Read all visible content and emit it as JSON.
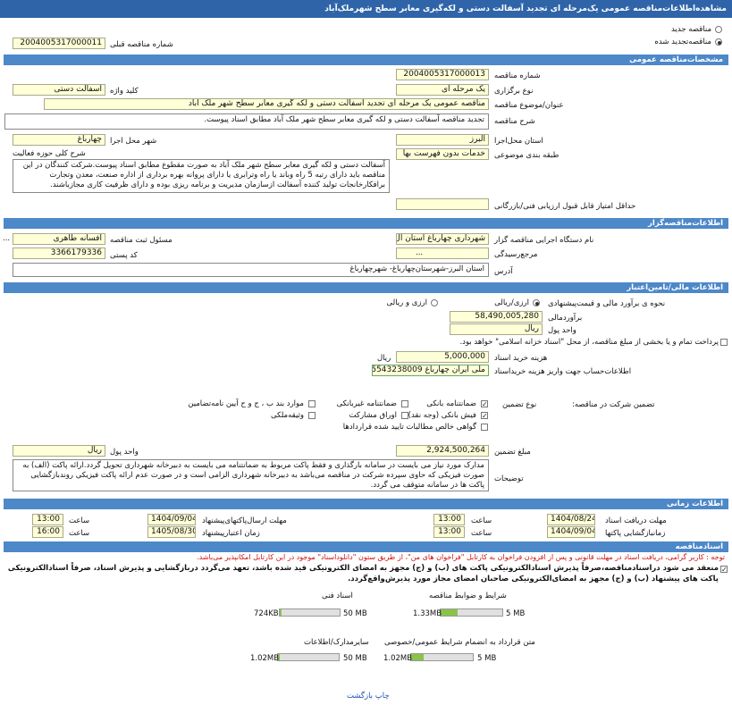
{
  "header": {
    "title": "مشاهده‌اطلاعات‌مناقصه عمومی یک‌مرحله ای تجدید آسفالت دستی و لکه‌گیری معابر سطح شهرملک‌آباد"
  },
  "tender_type": {
    "new": "مناقصه جدید",
    "new_checked": false,
    "renewed": "مناقصه‌تجدید شده",
    "renewed_checked": true,
    "previous_number_label": "شماره مناقصه قبلی",
    "previous_number": "2004005317000011"
  },
  "general": {
    "title": "مشخصات‌مناقصه عمومی",
    "number_label": "شماره مناقصه",
    "number": "2004005317000013",
    "holding_label": "نوع برگزاری",
    "holding": "یک مرحله ای",
    "keyword_label": "کلید واژه",
    "keyword": "آسفالت دستی",
    "subject_label": "عنوان/موضوع مناقصه",
    "subject": "مناقصه عمومی یک مرحله ای تجدید آسفالت دستی و لکه گیری معابر سطح شهر ملک آباد",
    "description_label": "شرح مناقصه",
    "description": "تجدید مناقصه آسفالت دستی و لکه گیری معابر سطح شهر ملک آباد مطابق اسناد پیوست.",
    "province_label": "استان محل‌اجرا",
    "province": "البرز",
    "city_label": "شهر محل اجرا",
    "city": "چهارباغ",
    "category_label": "طبقه بندی موضوعی",
    "category": "خدمات بدون فهرست بها",
    "activity_label": "شرح کلی حوزه فعالیت",
    "activity": "آسفالت دستی و لکه گیری معابر سطح شهر ملک آباد به صورت مقطوع مطابق اسناد پیوست.شرکت کنندگان در این مناقصه باید دارای رتبه 5 راه وباند یا راه وترابری یا دارای پروانه بهره برداری از اداره صنعت، معدن وتجارت برافکارخانجات تولید کننده آسفالت ازسازمان مدیریت و برنامه ریزی بوده و دارای ظرفیت کاری مجازباشند.",
    "min_score_label": "حداقل امتیاز قابل قبول ارزیابی فنی/بازرگانی"
  },
  "employer": {
    "title": "اطلاعات‌مناقصه‌گزار",
    "org_label": "نام دستگاه اجرایی مناقصه گزار",
    "org": "شهرداری چهارباغ استان ال",
    "registrar_label": "مسئول ثبت مناقصه",
    "registrar": "افسانه طاهری",
    "lookup": "...",
    "review_label": "مرجع‌رسیدگی",
    "postal_label": "کد پستی",
    "postal": "3366179336",
    "address_label": "آدرس",
    "address": "استان البرز-شهرستان‌چهارباغ- شهرچهارباغ"
  },
  "finance": {
    "title": "اطلاعات مالی/تامین‌اعتبار",
    "method_label": "نحوه ی برآورد مالی و قیمت‌پیشنهادی",
    "method_a": "ارزی/ریالی",
    "method_a_checked": true,
    "method_b": "ارزی و ریالی",
    "method_b_checked": false,
    "estimate_label": "برآوردمالی",
    "estimate": "58,490,005,280",
    "currency_label": "واحد پول",
    "currency": "ریال",
    "treasury": "پرداخت تمام و یا بخشی از مبلغ مناقصه، از محل \"اسناد خزانه اسلامی\" خواهد بود.",
    "treasury_checked": false,
    "doc_fee_label": "هزینه خرید اسناد",
    "doc_fee": "5,000,000",
    "doc_fee_unit": "ریال",
    "account_label": "اطلاعات‌حساب جهت واریز هزینه خریداسناد",
    "account": "ملی ایران چهارباغ 5543238009",
    "guarantee_title": "تضمین شرکت در مناقصه:",
    "guarantee_type_label": "نوع تضمین",
    "guarantee_options": [
      {
        "label": "ضمانتنامه بانکی",
        "checked": true
      },
      {
        "label": "فیش بانکی (وجه نقد)",
        "checked": true
      },
      {
        "label": "گواهی خالص مطالبات تایید شده قراردادها",
        "checked": false
      },
      {
        "label": "ضمانتنامه غیربانکی",
        "checked": false
      },
      {
        "label": "اوراق مشارکت",
        "checked": false
      },
      {
        "label": "موارد بند ب ، ج و ح آیین نامه‌تضامین",
        "checked": false
      },
      {
        "label": "وثیقه‌ملکی",
        "checked": false
      }
    ],
    "guarantee_amount_label": "مبلغ تضمین",
    "guarantee_amount": "2,924,500,264",
    "guarantee_currency_label": "واحد پول",
    "guarantee_currency": "ریال",
    "notes_label": "توضیحات",
    "notes": "مدارک مورد نیاز می بایست در سامانه بارگذاری و فقط پاکت مربوط به ضمانتنامه می بایست به دبیرخانه شهرداری تحویل گردد.ارائه پاکت (الف) به صورت فیزیکی که حاوی سپرده شرکت در مناقصه می‌باشد به دبیرخانه شهرداری الزامی است و در صورت عدم ارائه پاکت فیزیکی روندبازگشایی پاکت ها در سامانه متوقف می گردد."
  },
  "timing": {
    "title": "اطلاعات زمانی",
    "hour_label": "ساعت",
    "doc_deadline_label": "مهلت دریافت اسناد",
    "doc_deadline_date": "1404/08/24",
    "doc_deadline_time": "13:00",
    "submit_deadline_label": "مهلت ارسال‌پاکتهای‌پیشنهاد",
    "submit_deadline_date": "1404/09/04",
    "submit_deadline_time": "13:00",
    "opening_label": "زمانبازگشایی پاکتها",
    "opening_date": "1404/09/04",
    "opening_time": "13:00",
    "validity_label": "زمان اعتبارپیشنهاد",
    "validity_date": "1405/08/30",
    "validity_time": "16:00"
  },
  "documents": {
    "title": "اسنادمناقصه",
    "note": "توجه : کاربر گرامی، دریافت اسناد در مهلت قانونی و پس از افزودن فراخوان به کارتابل \"فراخوان های من\"، از طریق ستون \"دانلوداسناد\" موجود در این کارتابل امکانپذیر می‌باشد.",
    "commitment": "منعقد می شود دراسنادمناقصه،صرفاً پذیرش اسنادالکترونیکی پاکت های (ب) و (ج) مجهز به امضای الکترونیکی قید شده باشد، تعهد می‌گردد دربازگشایی و پذیرش اسناد، صرفاً اسنادالکترونیکی پاکت های پیشنهاد (ب) و (ج) مجهز به امضای‌الکترونیکی صاحبان امضای مجاز مورد پذیرش‌واقع‌گردد.",
    "commitment_checked": true,
    "files": [
      {
        "label": "شرایط و ضوابط مناقصه",
        "max": "5 MB",
        "size": "1.33MB"
      },
      {
        "label": "اسناد فنی",
        "max": "50 MB",
        "size": "724KB"
      },
      {
        "label": "متن قرارداد به انضمام شرایط عمومی/خصوصی",
        "max": "5 MB",
        "size": "1.02MB"
      },
      {
        "label": "سایرمدارک/اطلاعات",
        "max": "50 MB",
        "size": "1.02MB"
      }
    ]
  },
  "footer": {
    "print": "چاپ",
    "back": "بازگشت"
  }
}
